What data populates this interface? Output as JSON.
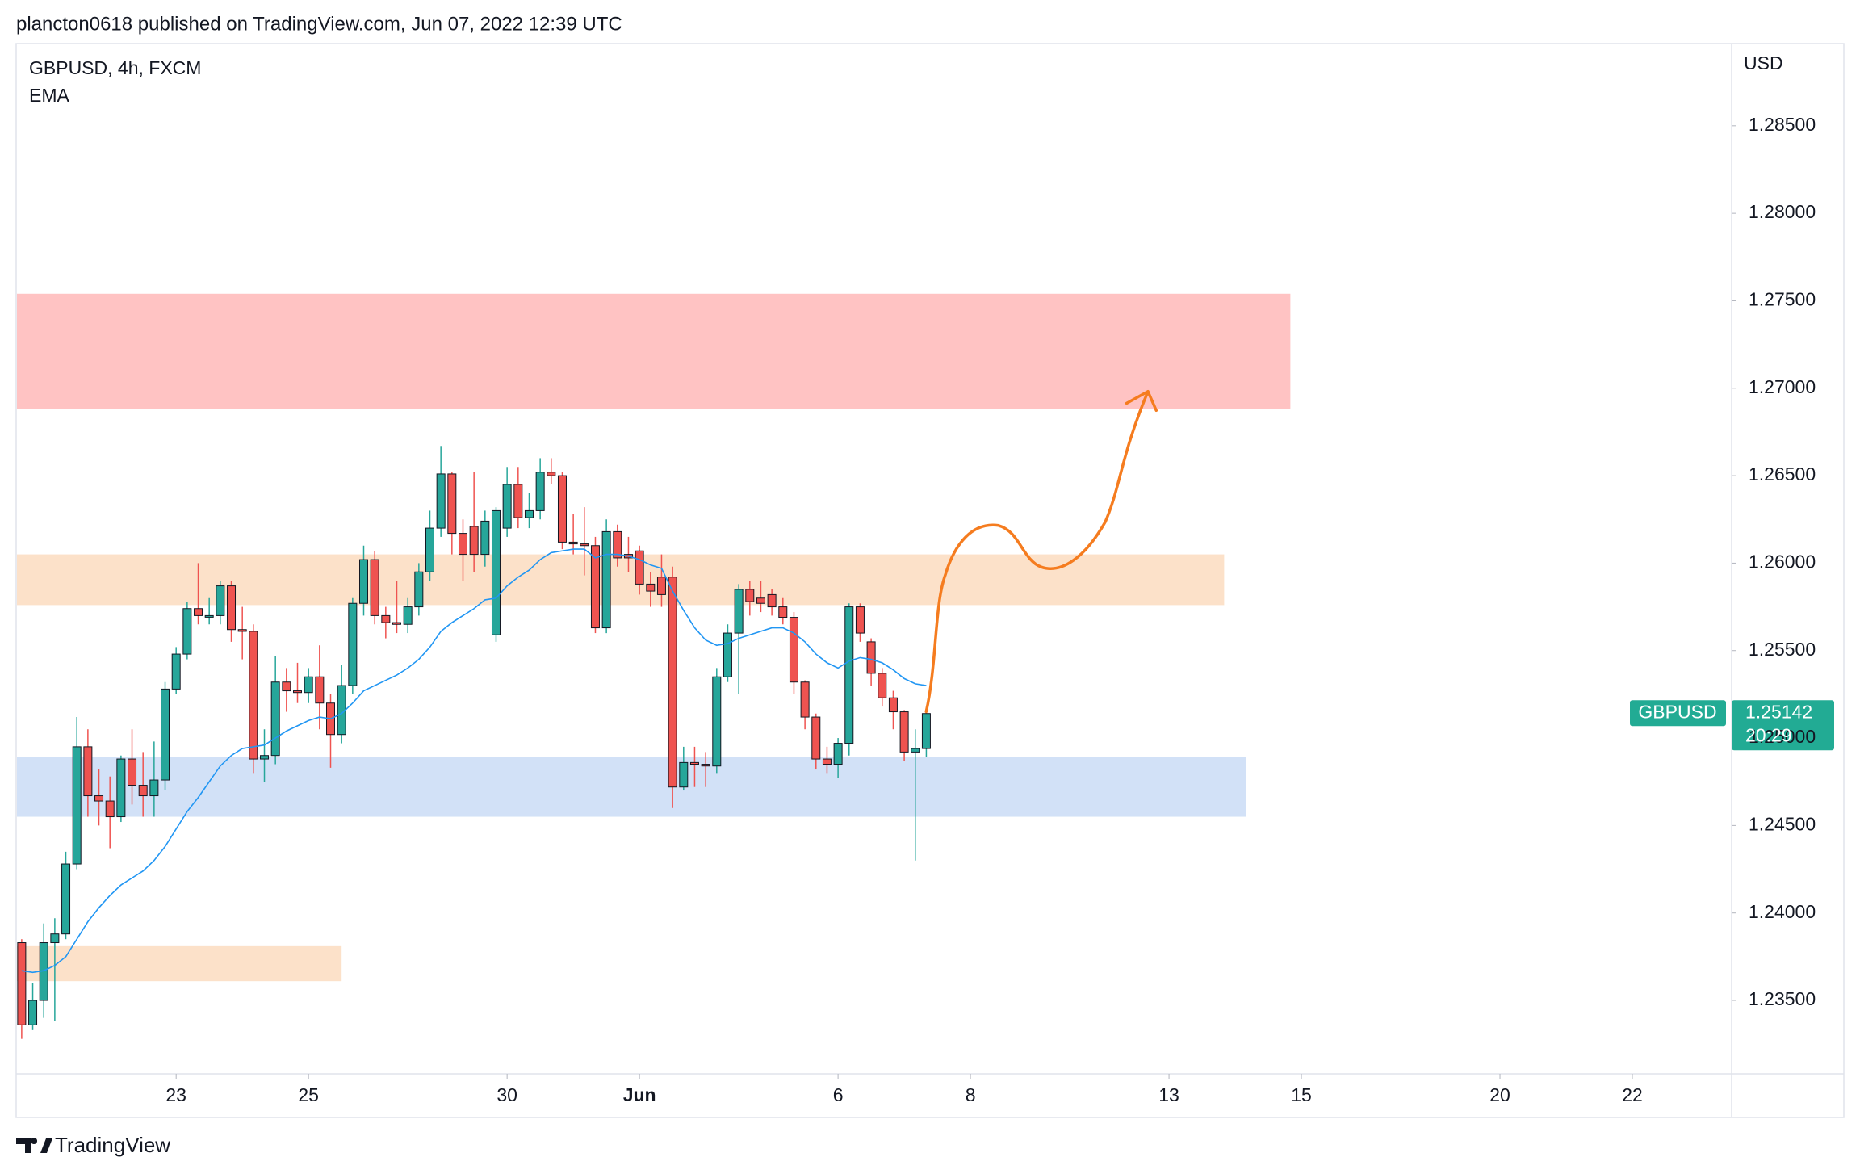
{
  "header": {
    "published": "plancton0618 published on TradingView.com, Jun 07, 2022 12:39 UTC",
    "footer": "TradingView"
  },
  "chart_data": {
    "type": "candlestick",
    "title": "GBPUSD, 4h, FXCM",
    "indicator": "EMA",
    "currency": "USD",
    "x": [
      0,
      1,
      2,
      3,
      4,
      5,
      6,
      7,
      8,
      9,
      10,
      11,
      12,
      13,
      14,
      15,
      16,
      17,
      18,
      19,
      20,
      21,
      22,
      23,
      24,
      25,
      26,
      27,
      28,
      29,
      30,
      31,
      32,
      33,
      34,
      35,
      36,
      37,
      38,
      39,
      40,
      41,
      42,
      43,
      44,
      45,
      46,
      47,
      48,
      49,
      50,
      51,
      52,
      53,
      54,
      55,
      56,
      57,
      58,
      59,
      60,
      61,
      62,
      63,
      64,
      65,
      66,
      67,
      68,
      69,
      70,
      71,
      72,
      73,
      74,
      75,
      76,
      77,
      78,
      79,
      80,
      81,
      82
    ],
    "open": [
      1.2383,
      1.2336,
      1.235,
      1.2383,
      1.2388,
      1.2428,
      1.2495,
      1.2467,
      1.2464,
      1.2455,
      1.2488,
      1.2473,
      1.2467,
      1.2476,
      1.2528,
      1.2548,
      1.2574,
      1.257,
      1.257,
      1.2587,
      1.2562,
      1.2561,
      1.2488,
      1.249,
      1.2532,
      1.2527,
      1.2526,
      1.2535,
      1.252,
      1.2502,
      1.253,
      1.2577,
      1.2602,
      1.257,
      1.2566,
      1.2565,
      1.2575,
      1.2595,
      1.262,
      1.2651,
      1.2617,
      1.2621,
      1.2605,
      1.2559,
      1.262,
      1.2645,
      1.2626,
      1.263,
      1.2652,
      1.265,
      1.2612,
      1.2611,
      1.261,
      1.2563,
      1.2618,
      1.2605,
      1.2607,
      1.2588,
      1.2592,
      1.2592,
      1.2472,
      1.2486,
      1.2485,
      1.2484,
      1.2535,
      1.256,
      1.2585,
      1.258,
      1.2582,
      1.2575,
      1.2569,
      1.2532,
      1.2512,
      1.2488,
      1.2485,
      1.2497,
      1.2575,
      1.2555,
      1.2537,
      1.2523,
      1.2515,
      1.2492,
      1.2494
    ],
    "high": [
      1.2385,
      1.236,
      1.2394,
      1.2397,
      1.2435,
      1.2512,
      1.2505,
      1.2482,
      1.2478,
      1.249,
      1.2505,
      1.2492,
      1.2498,
      1.2532,
      1.2552,
      1.2578,
      1.26,
      1.258,
      1.259,
      1.259,
      1.2575,
      1.2565,
      1.2505,
      1.2547,
      1.254,
      1.2543,
      1.254,
      1.2553,
      1.2525,
      1.2542,
      1.258,
      1.261,
      1.2607,
      1.2575,
      1.259,
      1.258,
      1.26,
      1.263,
      1.2667,
      1.2652,
      1.2625,
      1.2652,
      1.263,
      1.2632,
      1.2655,
      1.2655,
      1.264,
      1.266,
      1.266,
      1.2652,
      1.2628,
      1.2632,
      1.2615,
      1.2625,
      1.2622,
      1.2615,
      1.261,
      1.2595,
      1.2605,
      1.2598,
      1.2495,
      1.2495,
      1.2492,
      1.254,
      1.2565,
      1.2588,
      1.259,
      1.259,
      1.2585,
      1.258,
      1.2572,
      1.2533,
      1.2514,
      1.2495,
      1.25,
      1.2577,
      1.2577,
      1.2557,
      1.254,
      1.2527,
      1.2516,
      1.2505,
      1.2516
    ],
    "low": [
      1.2328,
      1.2333,
      1.234,
      1.2338,
      1.2385,
      1.2425,
      1.2455,
      1.245,
      1.2437,
      1.2452,
      1.2462,
      1.2455,
      1.2455,
      1.247,
      1.2525,
      1.2545,
      1.2565,
      1.2565,
      1.2565,
      1.2555,
      1.2545,
      1.248,
      1.2475,
      1.2485,
      1.2515,
      1.252,
      1.252,
      1.2505,
      1.2483,
      1.2497,
      1.2525,
      1.257,
      1.2565,
      1.2557,
      1.256,
      1.256,
      1.257,
      1.259,
      1.2615,
      1.2605,
      1.259,
      1.2595,
      1.2598,
      1.2555,
      1.2615,
      1.262,
      1.262,
      1.2625,
      1.2645,
      1.2608,
      1.2605,
      1.2593,
      1.256,
      1.256,
      1.2598,
      1.2595,
      1.2582,
      1.2575,
      1.2575,
      1.246,
      1.247,
      1.2472,
      1.2472,
      1.248,
      1.2532,
      1.2525,
      1.257,
      1.2572,
      1.257,
      1.2565,
      1.2525,
      1.2505,
      1.2482,
      1.248,
      1.2477,
      1.249,
      1.2555,
      1.253,
      1.2518,
      1.2505,
      1.2487,
      1.243,
      1.2489
    ],
    "close": [
      1.2336,
      1.235,
      1.2383,
      1.2388,
      1.2428,
      1.2495,
      1.2467,
      1.2464,
      1.2455,
      1.2488,
      1.2473,
      1.2467,
      1.2476,
      1.2528,
      1.2548,
      1.2574,
      1.257,
      1.257,
      1.2587,
      1.2562,
      1.2561,
      1.2488,
      1.249,
      1.2532,
      1.2527,
      1.2526,
      1.2535,
      1.252,
      1.2502,
      1.253,
      1.2577,
      1.2602,
      1.257,
      1.2566,
      1.2565,
      1.2575,
      1.2595,
      1.262,
      1.2651,
      1.2617,
      1.2605,
      1.2605,
      1.2624,
      1.263,
      1.2645,
      1.2626,
      1.263,
      1.2652,
      1.265,
      1.2612,
      1.2611,
      1.261,
      1.2563,
      1.2618,
      1.2603,
      1.2603,
      1.2588,
      1.2584,
      1.2582,
      1.2472,
      1.2486,
      1.2485,
      1.2484,
      1.2535,
      1.256,
      1.2585,
      1.2578,
      1.2577,
      1.2575,
      1.2569,
      1.2532,
      1.2512,
      1.2488,
      1.2485,
      1.2497,
      1.2575,
      1.256,
      1.2537,
      1.2523,
      1.2515,
      1.2492,
      1.2494,
      1.2514
    ],
    "up_color": "#26a69a",
    "down_color": "#ef5350",
    "ema": {
      "color": "#2196f3",
      "values": [
        1.2367,
        1.2366,
        1.2367,
        1.237,
        1.2375,
        1.2385,
        1.2395,
        1.2403,
        1.241,
        1.2416,
        1.242,
        1.2424,
        1.243,
        1.2438,
        1.2448,
        1.2458,
        1.2466,
        1.2475,
        1.2484,
        1.249,
        1.2494,
        1.2495,
        1.2496,
        1.25,
        1.2504,
        1.2507,
        1.251,
        1.2512,
        1.2511,
        1.2514,
        1.252,
        1.2527,
        1.253,
        1.2533,
        1.2536,
        1.254,
        1.2545,
        1.2552,
        1.2561,
        1.2566,
        1.257,
        1.2574,
        1.2579,
        1.258,
        1.2587,
        1.2592,
        1.2596,
        1.2602,
        1.2606,
        1.2607,
        1.2608,
        1.2608,
        1.2603,
        1.2605,
        1.2605,
        1.2604,
        1.2602,
        1.2599,
        1.2597,
        1.2584,
        1.2573,
        1.2563,
        1.2556,
        1.2553,
        1.2554,
        1.2557,
        1.2559,
        1.2561,
        1.2563,
        1.2563,
        1.256,
        1.2555,
        1.2548,
        1.2543,
        1.254,
        1.2544,
        1.2546,
        1.2545,
        1.2543,
        1.2539,
        1.2534,
        1.2531,
        1.253
      ]
    },
    "zones": [
      {
        "x": [
          -0.43,
          115
        ],
        "y": [
          1.2688,
          1.2754
        ],
        "color": "#ffb9b9"
      },
      {
        "x": [
          -0.43,
          109
        ],
        "y": [
          1.2576,
          1.2605
        ],
        "color": "#fbdcbf"
      },
      {
        "x": [
          -0.43,
          111
        ],
        "y": [
          1.2455,
          1.2489
        ],
        "color": "#cadcf6"
      },
      {
        "x": [
          -0.43,
          29
        ],
        "y": [
          1.2361,
          1.2381
        ],
        "color": "#fbdcbf"
      }
    ],
    "last_price": {
      "symbol": "GBPUSD",
      "value": 1.25142,
      "countdown": "20:29",
      "color": "#22ab94"
    },
    "xlim": [
      -0.43,
      155
    ],
    "xticks": [
      {
        "value": 14,
        "label": "23"
      },
      {
        "value": 26,
        "label": "25"
      },
      {
        "value": 44,
        "label": "30"
      },
      {
        "value": 56,
        "label": "Jun"
      },
      {
        "value": 74,
        "label": "6"
      },
      {
        "value": 86,
        "label": "8"
      },
      {
        "value": 104,
        "label": "13"
      },
      {
        "value": 116,
        "label": "15"
      },
      {
        "value": 134,
        "label": "20"
      },
      {
        "value": 146,
        "label": "22"
      }
    ],
    "ylim": [
      1.2308,
      1.2897
    ],
    "yticks": [
      {
        "value": 1.235,
        "label": "1.23500"
      },
      {
        "value": 1.24,
        "label": "1.24000"
      },
      {
        "value": 1.245,
        "label": "1.24500"
      },
      {
        "value": 1.25,
        "label": "1.25000"
      },
      {
        "value": 1.255,
        "label": "1.25500"
      },
      {
        "value": 1.26,
        "label": "1.26000"
      },
      {
        "value": 1.265,
        "label": "1.26500"
      },
      {
        "value": 1.27,
        "label": "1.27000"
      },
      {
        "value": 1.275,
        "label": "1.27500"
      },
      {
        "value": 1.28,
        "label": "1.28000"
      },
      {
        "value": 1.285,
        "label": "1.28500"
      }
    ]
  }
}
